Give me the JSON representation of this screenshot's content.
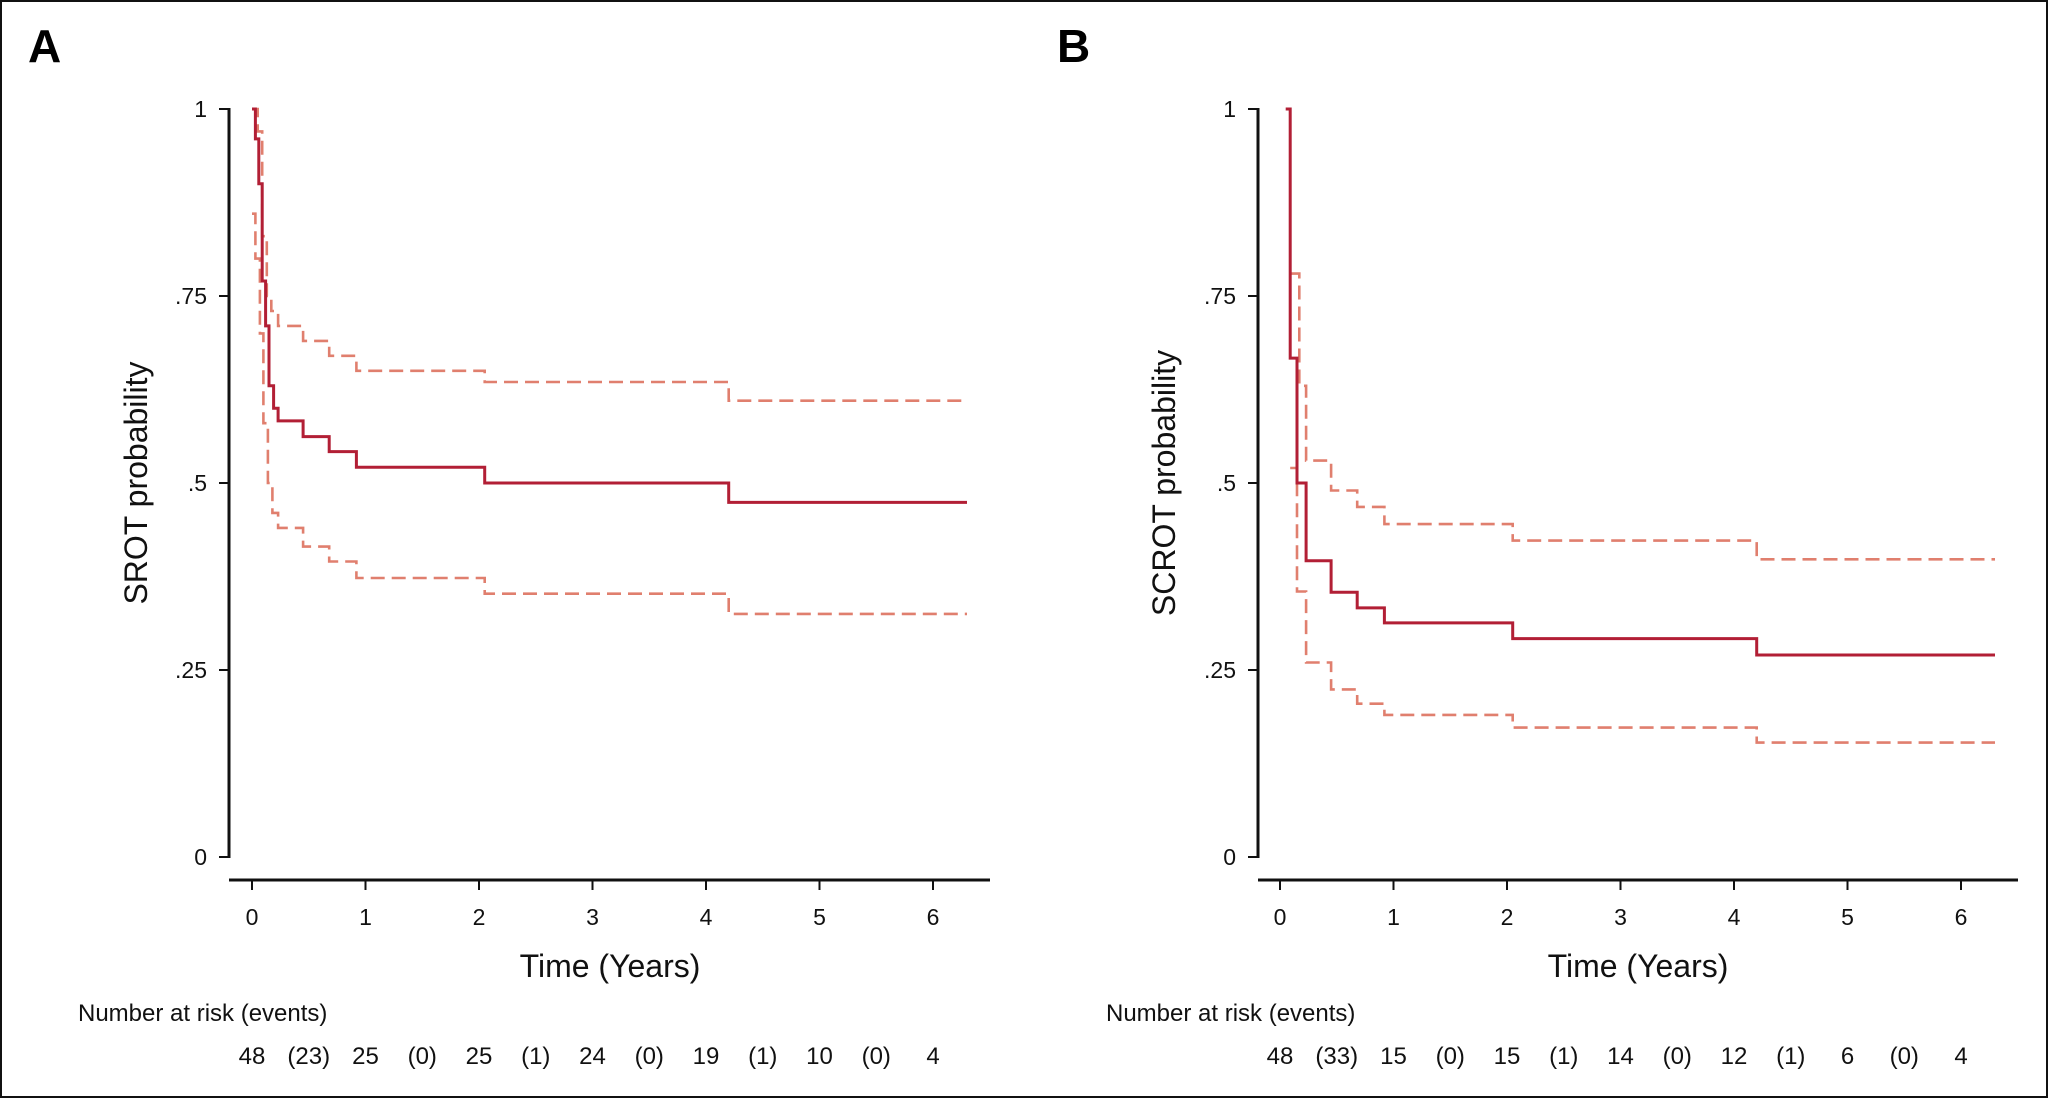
{
  "colors": {
    "estimate": "#b21f35",
    "ci": "#e07f6e",
    "axis": "#111111"
  },
  "chart_data": [
    {
      "type": "line",
      "panel_label": "A",
      "ylabel": "SROT probability",
      "xlabel": "Time (Years)",
      "xlim": [
        0,
        6.3
      ],
      "ylim": [
        0,
        1
      ],
      "xticks": [
        0,
        1,
        2,
        3,
        4,
        5,
        6
      ],
      "xtick_labels": [
        "0",
        "1",
        "2",
        "3",
        "4",
        "5",
        "6"
      ],
      "yticks": [
        0,
        0.25,
        0.5,
        0.75,
        1
      ],
      "ytick_labels": [
        "0",
        ".25",
        ".5",
        ".75",
        "1"
      ],
      "grid": false,
      "series": [
        {
          "role": "estimate",
          "style": "solid",
          "step": true,
          "x": [
            0,
            0.03,
            0.06,
            0.09,
            0.12,
            0.15,
            0.19,
            0.23,
            0.45,
            0.68,
            0.92,
            2.05,
            4.2,
            6.3
          ],
          "y": [
            1,
            0.96,
            0.9,
            0.77,
            0.71,
            0.63,
            0.6,
            0.583,
            0.562,
            0.542,
            0.521,
            0.5,
            0.474,
            0.474
          ]
        },
        {
          "role": "upper_ci",
          "style": "dashed",
          "step": true,
          "x": [
            0,
            0.05,
            0.09,
            0.13,
            0.17,
            0.23,
            0.45,
            0.68,
            0.92,
            2.05,
            4.2,
            6.3
          ],
          "y": [
            1,
            0.97,
            0.83,
            0.75,
            0.73,
            0.71,
            0.69,
            0.67,
            0.65,
            0.635,
            0.61,
            0.61
          ]
        },
        {
          "role": "lower_ci",
          "style": "dashed",
          "step": true,
          "x": [
            0,
            0.03,
            0.07,
            0.1,
            0.14,
            0.18,
            0.23,
            0.45,
            0.68,
            0.92,
            2.05,
            4.2,
            6.3
          ],
          "y": [
            0.86,
            0.8,
            0.7,
            0.58,
            0.5,
            0.46,
            0.44,
            0.415,
            0.395,
            0.373,
            0.352,
            0.325,
            0.325
          ]
        }
      ],
      "risk_table": {
        "title": "Number at risk (events)",
        "values": [
          "48",
          "(23)",
          "25",
          "(0)",
          "25",
          "(1)",
          "24",
          "(0)",
          "19",
          "(1)",
          "10",
          "(0)",
          "4"
        ]
      }
    },
    {
      "type": "line",
      "panel_label": "B",
      "ylabel": "SCROT probability",
      "xlabel": "Time (Years)",
      "xlim": [
        0,
        6.3
      ],
      "ylim": [
        0,
        1
      ],
      "xticks": [
        0,
        1,
        2,
        3,
        4,
        5,
        6
      ],
      "xtick_labels": [
        "0",
        "1",
        "2",
        "3",
        "4",
        "5",
        "6"
      ],
      "yticks": [
        0,
        0.25,
        0.5,
        0.75,
        1
      ],
      "ytick_labels": [
        "0",
        ".25",
        ".5",
        ".75",
        "1"
      ],
      "grid": false,
      "series": [
        {
          "role": "estimate",
          "style": "solid",
          "step": true,
          "x": [
            0.05,
            0.09,
            0.15,
            0.23,
            0.45,
            0.68,
            0.92,
            2.05,
            4.2,
            6.3
          ],
          "y": [
            1,
            0.667,
            0.5,
            0.396,
            0.354,
            0.333,
            0.313,
            0.292,
            0.27,
            0.27
          ]
        },
        {
          "role": "upper_ci",
          "style": "dashed",
          "step": true,
          "x": [
            0.09,
            0.17,
            0.23,
            0.45,
            0.68,
            0.92,
            2.05,
            4.2,
            6.3
          ],
          "y": [
            0.78,
            0.63,
            0.53,
            0.49,
            0.468,
            0.445,
            0.423,
            0.398,
            0.398
          ]
        },
        {
          "role": "lower_ci",
          "style": "dashed",
          "step": true,
          "x": [
            0.09,
            0.15,
            0.23,
            0.45,
            0.68,
            0.92,
            2.05,
            4.2,
            6.3
          ],
          "y": [
            0.52,
            0.355,
            0.26,
            0.224,
            0.205,
            0.19,
            0.173,
            0.153,
            0.153
          ]
        }
      ],
      "risk_table": {
        "title": "Number at risk (events)",
        "values": [
          "48",
          "(33)",
          "15",
          "(0)",
          "15",
          "(1)",
          "14",
          "(0)",
          "12",
          "(1)",
          "6",
          "(0)",
          "4"
        ]
      }
    }
  ]
}
